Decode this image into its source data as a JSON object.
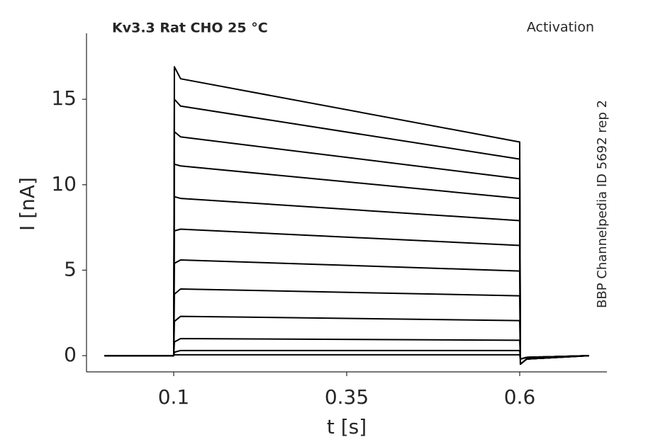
{
  "chart_data": {
    "type": "line",
    "title": "Kv3.3  Rat  CHO  25 °C",
    "annotation": "Activation",
    "side_label": "BBP Channelpedia ID 5692 rep 2",
    "xlabel": "t [s]",
    "ylabel": "I [nA]",
    "color": "#000000",
    "xlim": [
      -0.026,
      0.726
    ],
    "ylim": [
      -0.95,
      18.86
    ],
    "xticks": [
      0.1,
      0.35,
      0.6
    ],
    "yticks": [
      0,
      5,
      10,
      15
    ],
    "x": [
      0,
      0.1,
      0.101,
      0.11,
      0.6,
      0.601,
      0.61,
      0.7
    ],
    "series": [
      {
        "values": [
          0,
          0,
          16.9,
          16.2,
          12.5,
          -0.5,
          -0.2,
          0
        ]
      },
      {
        "values": [
          0,
          0,
          15.0,
          14.6,
          11.5,
          -0.5,
          -0.2,
          0
        ]
      },
      {
        "values": [
          0,
          0,
          13.1,
          12.8,
          10.35,
          -0.5,
          -0.2,
          0
        ]
      },
      {
        "values": [
          0,
          0,
          11.2,
          11.1,
          9.2,
          -0.5,
          -0.2,
          0
        ]
      },
      {
        "values": [
          0,
          0,
          9.3,
          9.2,
          7.9,
          -0.5,
          -0.2,
          0
        ]
      },
      {
        "values": [
          0,
          0,
          7.3,
          7.4,
          6.45,
          -0.5,
          -0.2,
          0
        ]
      },
      {
        "values": [
          0,
          0,
          5.4,
          5.6,
          4.95,
          -0.2,
          -0.1,
          0
        ]
      },
      {
        "values": [
          0,
          0,
          3.6,
          3.9,
          3.5,
          -0.2,
          -0.1,
          0
        ]
      },
      {
        "values": [
          0,
          0,
          2.0,
          2.3,
          2.05,
          -0.2,
          -0.1,
          0
        ]
      },
      {
        "values": [
          0,
          0,
          0.8,
          1.0,
          0.9,
          -0.2,
          -0.1,
          0
        ]
      },
      {
        "values": [
          0,
          0,
          0.2,
          0.3,
          0.3,
          -0.2,
          -0.1,
          0
        ]
      },
      {
        "values": [
          0,
          0,
          0.05,
          0.05,
          0.05,
          -0.2,
          -0.1,
          0
        ]
      }
    ]
  }
}
